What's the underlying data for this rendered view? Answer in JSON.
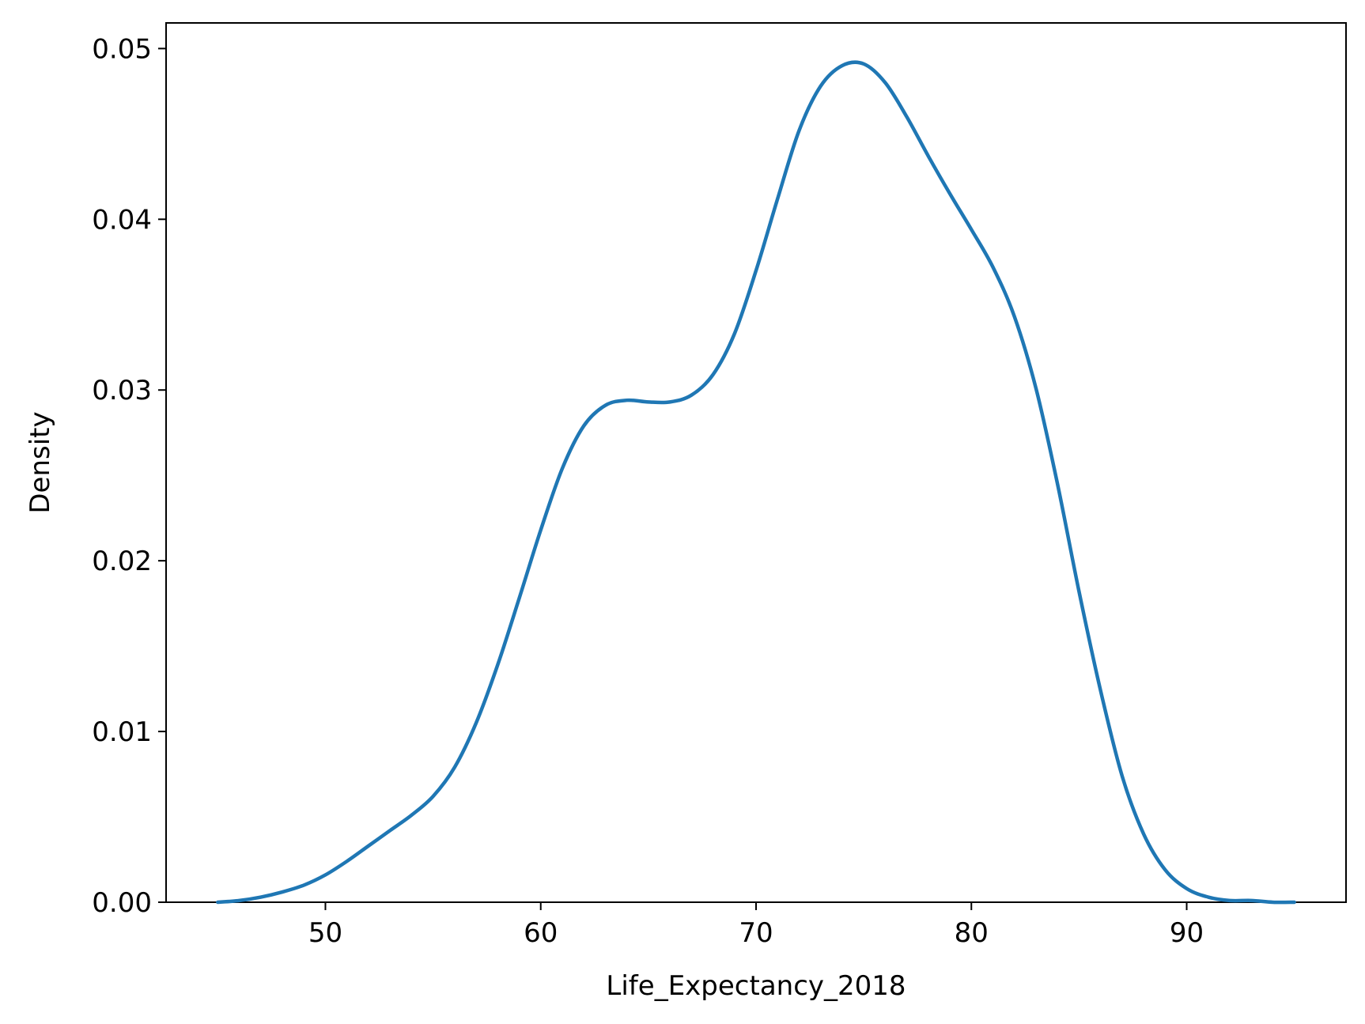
{
  "chart_data": {
    "type": "line",
    "title": "",
    "xlabel": "Life_Expectancy_2018",
    "ylabel": "Density",
    "xlim": [
      42.6,
      97.4
    ],
    "ylim": [
      0,
      0.0515
    ],
    "xticks": [
      50,
      60,
      70,
      80,
      90
    ],
    "xtick_labels": [
      "50",
      "60",
      "70",
      "80",
      "90"
    ],
    "yticks": [
      0.0,
      0.01,
      0.02,
      0.03,
      0.04,
      0.05
    ],
    "ytick_labels": [
      "0.00",
      "0.01",
      "0.02",
      "0.03",
      "0.04",
      "0.05"
    ],
    "grid": false,
    "legend": "none",
    "series": [
      {
        "color": "#1f77b4",
        "x": [
          45.0,
          46.0,
          47.0,
          48.0,
          49.0,
          50.0,
          51.0,
          52.0,
          53.0,
          54.0,
          55.0,
          56.0,
          57.0,
          58.0,
          59.0,
          60.0,
          61.0,
          62.0,
          63.0,
          64.0,
          65.0,
          66.0,
          67.0,
          68.0,
          69.0,
          70.0,
          71.0,
          72.0,
          73.0,
          74.0,
          75.0,
          76.0,
          77.0,
          78.0,
          79.0,
          80.0,
          81.0,
          82.0,
          83.0,
          84.0,
          85.0,
          86.0,
          87.0,
          88.0,
          89.0,
          90.0,
          91.0,
          92.0,
          93.0,
          94.0,
          95.0
        ],
        "y": [
          0.0,
          0.0001,
          0.0003,
          0.0006,
          0.001,
          0.0016,
          0.0024,
          0.0033,
          0.0042,
          0.0051,
          0.0062,
          0.0079,
          0.0105,
          0.0139,
          0.0178,
          0.0218,
          0.0254,
          0.0279,
          0.0291,
          0.0294,
          0.0293,
          0.0293,
          0.0297,
          0.0309,
          0.0333,
          0.037,
          0.0412,
          0.0452,
          0.0478,
          0.049,
          0.0491,
          0.048,
          0.046,
          0.0437,
          0.0415,
          0.0394,
          0.0372,
          0.0343,
          0.0301,
          0.0245,
          0.0182,
          0.0124,
          0.0074,
          0.004,
          0.0019,
          0.0008,
          0.0003,
          0.0001,
          0.0001,
          0.0,
          0.0
        ]
      }
    ]
  }
}
